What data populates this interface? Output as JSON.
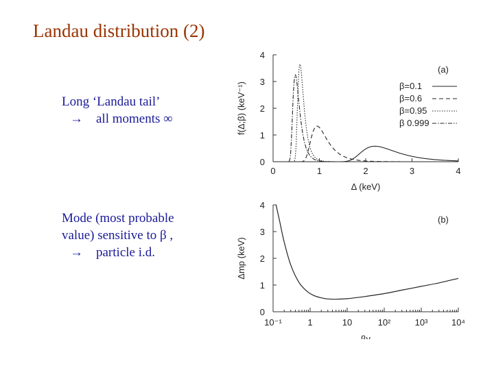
{
  "slide": {
    "title": "Landau distribution  (2)",
    "bullet1_line1": "Long ‘Landau tail’",
    "bullet1_arrow": "→",
    "bullet1_line2": "all moments ∞",
    "bullet2_line1": "Mode (most probable",
    "bullet2_line2": "value) sensitive to β ,",
    "bullet2_arrow": "→",
    "bullet2_line3": "particle i.d."
  },
  "chart_data": [
    {
      "type": "line",
      "panel_label": "(a)",
      "xlabel": "Δ  (keV)",
      "ylabel": "f(Δ;β)  (keV⁻¹)",
      "xlim": [
        0,
        4
      ],
      "ylim": [
        0,
        4
      ],
      "xticks": [
        "0",
        "1",
        "2",
        "3",
        "4"
      ],
      "yticks": [
        "0",
        "1",
        "2",
        "3",
        "4"
      ],
      "legend_position": "top-right",
      "series": [
        {
          "name": "β=0.1",
          "style": "solid",
          "mode": 2.2,
          "peak": 0.58,
          "width": 0.26
        },
        {
          "name": "β=0.6",
          "style": "dashed",
          "mode": 0.95,
          "peak": 1.33,
          "width": 0.12
        },
        {
          "name": "β=0.95",
          "style": "dotted",
          "mode": 0.58,
          "peak": 3.65,
          "width": 0.045
        },
        {
          "name": "β  0.999",
          "style": "dash-dot",
          "mode": 0.48,
          "peak": 3.25,
          "width": 0.05
        }
      ]
    },
    {
      "type": "line",
      "panel_label": "(b)",
      "xlabel": "βγ",
      "ylabel": "Δmp  (keV)",
      "xscale": "log",
      "xlim": [
        0.1,
        10000
      ],
      "ylim": [
        0,
        4
      ],
      "xticks": [
        "10⁻¹",
        "1",
        "10",
        "10²",
        "10³",
        "10⁴"
      ],
      "yticks": [
        "0",
        "1",
        "2",
        "3",
        "4"
      ],
      "series": [
        {
          "name": "",
          "x": [
            0.12,
            0.15,
            0.2,
            0.3,
            0.5,
            0.8,
            1.2,
            2,
            3,
            5,
            10,
            30,
            100,
            300,
            1000,
            3000,
            10000
          ],
          "y": [
            4.0,
            3.4,
            2.6,
            1.75,
            1.1,
            0.78,
            0.62,
            0.52,
            0.48,
            0.47,
            0.49,
            0.57,
            0.68,
            0.81,
            0.95,
            1.08,
            1.25
          ]
        }
      ]
    }
  ]
}
